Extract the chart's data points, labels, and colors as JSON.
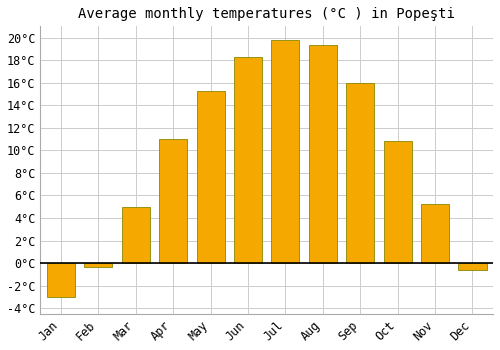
{
  "title": "Average monthly temperatures (°C ) in Popeşti",
  "months": [
    "Jan",
    "Feb",
    "Mar",
    "Apr",
    "May",
    "Jun",
    "Jul",
    "Aug",
    "Sep",
    "Oct",
    "Nov",
    "Dec"
  ],
  "temperatures": [
    -3.0,
    -0.3,
    5.0,
    11.0,
    15.3,
    18.3,
    19.8,
    19.3,
    16.0,
    10.8,
    5.2,
    -0.6
  ],
  "bar_color": "#F5A800",
  "bar_edge_color": "#888800",
  "ylim": [
    -4.5,
    21
  ],
  "yticks": [
    -4,
    -2,
    0,
    2,
    4,
    6,
    8,
    10,
    12,
    14,
    16,
    18,
    20
  ],
  "background_color": "#ffffff",
  "grid_color": "#cccccc",
  "title_fontsize": 10,
  "tick_fontsize": 8.5
}
